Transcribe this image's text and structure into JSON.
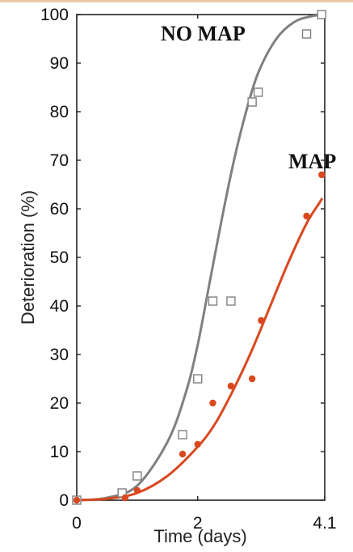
{
  "chart_data": {
    "type": "line",
    "xlabel": "Time (days)",
    "ylabel": "Deterioration (%)",
    "xlim": [
      0,
      4.1
    ],
    "ylim": [
      0,
      100
    ],
    "x_ticks": [
      {
        "value": 0,
        "label": "0"
      },
      {
        "value": 2,
        "label": "2"
      },
      {
        "value": 4.1,
        "label": "4.1"
      }
    ],
    "y_ticks": [
      0,
      10,
      20,
      30,
      40,
      50,
      60,
      70,
      80,
      90,
      100
    ],
    "grid": false,
    "legend": "none",
    "series": [
      {
        "name": "NO MAP",
        "color": "#808080",
        "marker": "open-square",
        "points": [
          {
            "x": 0.0,
            "y": 0
          },
          {
            "x": 0.75,
            "y": 1.5
          },
          {
            "x": 1.0,
            "y": 5
          },
          {
            "x": 1.75,
            "y": 13.5
          },
          {
            "x": 2.0,
            "y": 25
          },
          {
            "x": 2.25,
            "y": 41
          },
          {
            "x": 2.55,
            "y": 41
          },
          {
            "x": 2.9,
            "y": 82
          },
          {
            "x": 3.0,
            "y": 84
          },
          {
            "x": 3.8,
            "y": 96
          },
          {
            "x": 4.05,
            "y": 100
          }
        ],
        "fit": [
          {
            "x": 0,
            "y": 0
          },
          {
            "x": 0.5,
            "y": 0.5
          },
          {
            "x": 1.0,
            "y": 3
          },
          {
            "x": 1.5,
            "y": 12
          },
          {
            "x": 1.8,
            "y": 22
          },
          {
            "x": 2.0,
            "y": 32
          },
          {
            "x": 2.2,
            "y": 45
          },
          {
            "x": 2.4,
            "y": 58
          },
          {
            "x": 2.6,
            "y": 70
          },
          {
            "x": 2.8,
            "y": 80
          },
          {
            "x": 3.0,
            "y": 88
          },
          {
            "x": 3.3,
            "y": 95
          },
          {
            "x": 3.6,
            "y": 98.5
          },
          {
            "x": 3.9,
            "y": 99.7
          },
          {
            "x": 4.1,
            "y": 100
          }
        ]
      },
      {
        "name": "MAP",
        "color": "#d9481f",
        "marker": "filled-dot",
        "points": [
          {
            "x": 0.0,
            "y": 0
          },
          {
            "x": 0.8,
            "y": 0.5
          },
          {
            "x": 1.0,
            "y": 2
          },
          {
            "x": 1.75,
            "y": 9.5
          },
          {
            "x": 2.0,
            "y": 11.5
          },
          {
            "x": 2.25,
            "y": 20
          },
          {
            "x": 2.55,
            "y": 23.5
          },
          {
            "x": 2.9,
            "y": 25
          },
          {
            "x": 3.05,
            "y": 37
          },
          {
            "x": 3.8,
            "y": 58.5
          },
          {
            "x": 4.05,
            "y": 67
          }
        ],
        "fit": [
          {
            "x": 0,
            "y": 0
          },
          {
            "x": 0.5,
            "y": 0.3
          },
          {
            "x": 1.0,
            "y": 1.5
          },
          {
            "x": 1.5,
            "y": 5
          },
          {
            "x": 2.0,
            "y": 11
          },
          {
            "x": 2.3,
            "y": 16
          },
          {
            "x": 2.6,
            "y": 23
          },
          {
            "x": 2.9,
            "y": 31
          },
          {
            "x": 3.2,
            "y": 40
          },
          {
            "x": 3.5,
            "y": 49
          },
          {
            "x": 3.8,
            "y": 57
          },
          {
            "x": 4.0,
            "y": 61
          },
          {
            "x": 4.05,
            "y": 62
          }
        ]
      }
    ]
  }
}
